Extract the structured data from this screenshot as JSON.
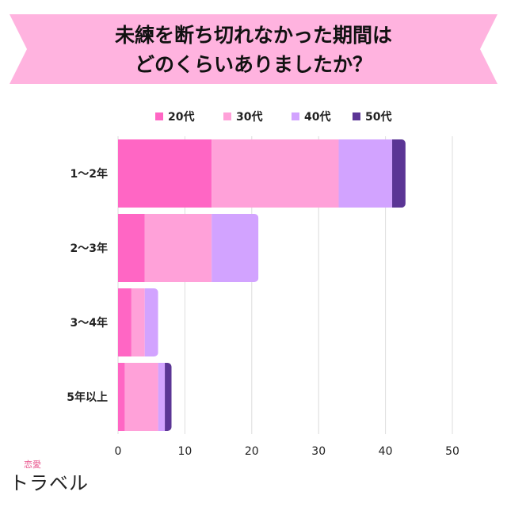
{
  "title_lines": [
    "未練を断ち切れなかった期間は",
    "どのくらいありましたか？"
  ],
  "chart_data": {
    "type": "bar",
    "orientation": "horizontal",
    "stacked": true,
    "categories": [
      "1〜2年",
      "2〜3年",
      "3〜4年",
      "5年以上"
    ],
    "series": [
      {
        "name": "20代",
        "color": "#ff66c4",
        "values": [
          14,
          4,
          2,
          1
        ]
      },
      {
        "name": "30代",
        "color": "#ffa1d9",
        "values": [
          19,
          10,
          2,
          5
        ]
      },
      {
        "name": "40代",
        "color": "#d2a3ff",
        "values": [
          8,
          7,
          2,
          1
        ]
      },
      {
        "name": "50代",
        "color": "#5b3595",
        "values": [
          2,
          0,
          0,
          1
        ]
      }
    ],
    "xlim": [
      0,
      50
    ],
    "xticks": [
      0,
      10,
      20,
      30,
      40,
      50
    ],
    "grid": true,
    "legend_position": "top"
  },
  "logo": {
    "top": "恋愛",
    "main": "トラベル"
  },
  "colors": {
    "banner": "#ffb3df"
  }
}
